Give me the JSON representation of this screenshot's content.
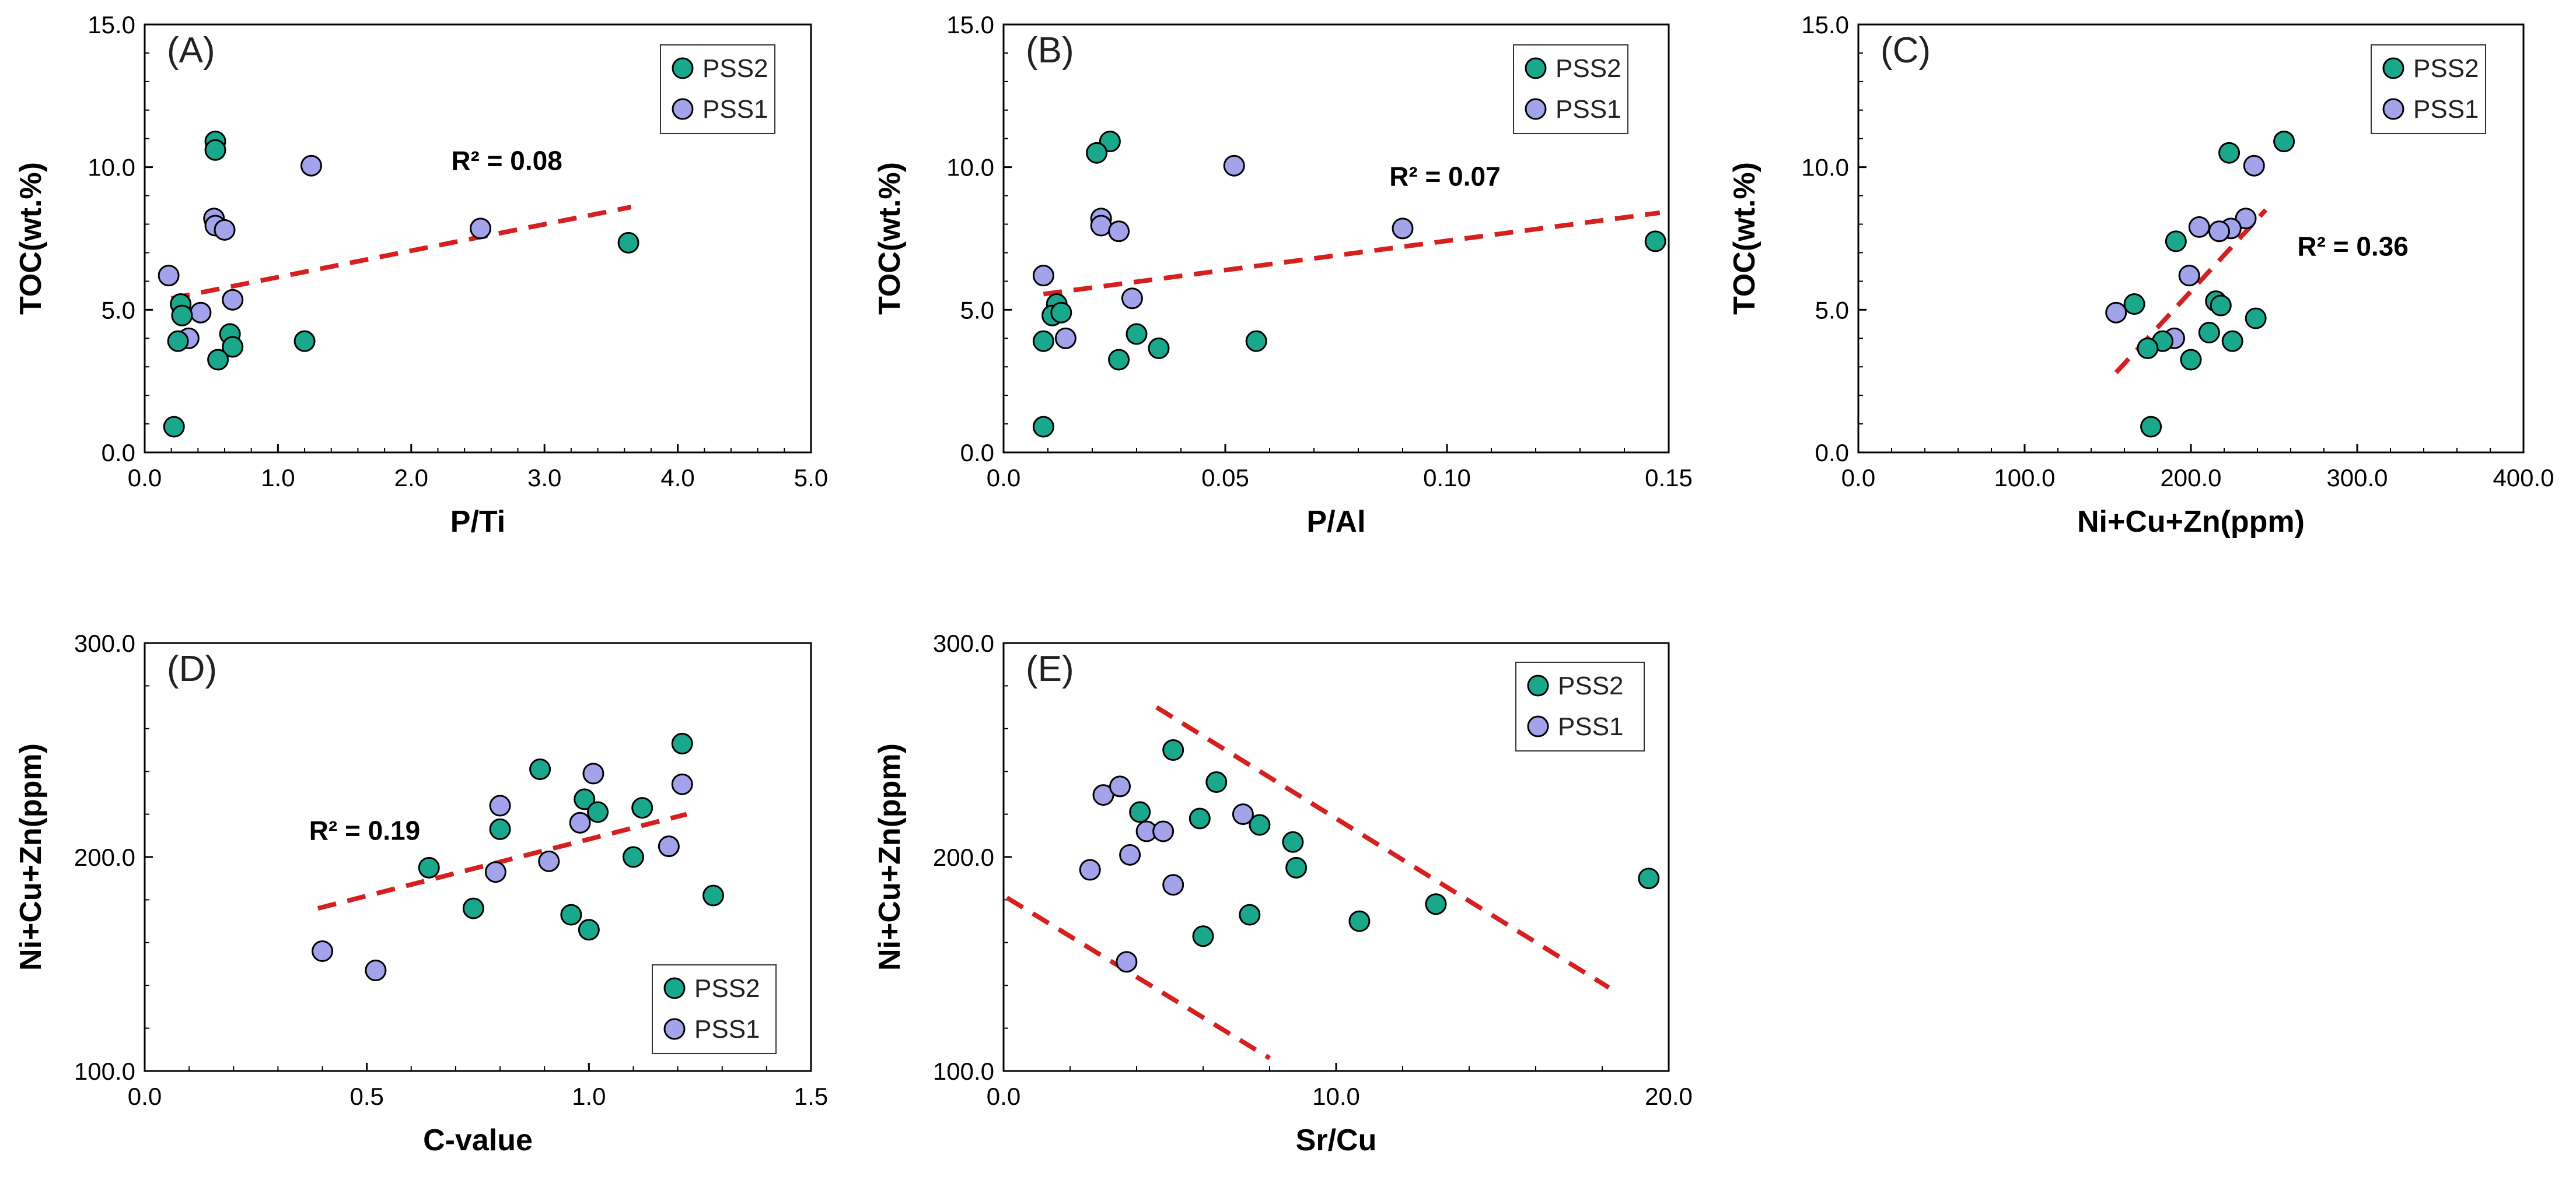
{
  "colors": {
    "pss2": "#19a88b",
    "pss1": "#a3a3ec",
    "trend": "#d61f1f",
    "axis": "#000000"
  },
  "chart_data": [
    {
      "type": "scatter",
      "panel": "(A)",
      "xlabel": "P/Ti",
      "ylabel": "TOC(wt.%)",
      "xlim": [
        0,
        5
      ],
      "ylim": [
        0,
        15
      ],
      "xticks": [
        "0.0",
        "1.0",
        "2.0",
        "3.0",
        "4.0",
        "5.0"
      ],
      "yticks": [
        "0.0",
        "5.0",
        "10.0",
        "15.0"
      ],
      "legend": {
        "position": "top-right",
        "entries": [
          "PSS2",
          "PSS1"
        ]
      },
      "annotation": {
        "text": "R² = 0.08",
        "x": 2.3,
        "y": 9.9
      },
      "trendlines": [
        {
          "x": [
            0.2,
            3.65
          ],
          "y": [
            5.4,
            8.6
          ]
        }
      ],
      "series": [
        {
          "name": "PSS2",
          "x": [
            0.53,
            0.53,
            0.27,
            0.28,
            0.25,
            0.64,
            0.66,
            0.55,
            1.2,
            3.63,
            0.22
          ],
          "y": [
            10.9,
            10.6,
            5.2,
            4.8,
            3.9,
            4.15,
            3.7,
            3.25,
            3.9,
            7.35,
            0.9
          ]
        },
        {
          "name": "PSS1",
          "x": [
            1.25,
            2.52,
            0.52,
            0.53,
            0.6,
            0.18,
            0.66,
            0.42,
            0.33
          ],
          "y": [
            10.05,
            7.85,
            8.2,
            7.95,
            7.8,
            6.2,
            5.35,
            4.9,
            4.0
          ]
        }
      ]
    },
    {
      "type": "scatter",
      "panel": "(B)",
      "xlabel": "P/Al",
      "ylabel": "TOC(wt.%)",
      "xlim": [
        0,
        0.15
      ],
      "ylim": [
        0,
        15
      ],
      "xticks": [
        "0.0",
        "0.05",
        "0.10",
        "0.15"
      ],
      "yticks": [
        "0.0",
        "5.0",
        "10.0",
        "15.0"
      ],
      "legend": {
        "position": "top-right",
        "entries": [
          "PSS2",
          "PSS1"
        ]
      },
      "annotation": {
        "text": "R² = 0.07",
        "x": 0.087,
        "y": 9.35
      },
      "trendlines": [
        {
          "x": [
            0.009,
            0.148
          ],
          "y": [
            5.55,
            8.4
          ]
        }
      ],
      "series": [
        {
          "name": "PSS2",
          "x": [
            0.024,
            0.021,
            0.012,
            0.011,
            0.013,
            0.009,
            0.03,
            0.026,
            0.035,
            0.057,
            0.147,
            0.009
          ],
          "y": [
            10.9,
            10.5,
            5.2,
            4.8,
            4.9,
            3.9,
            4.15,
            3.25,
            3.65,
            3.9,
            7.4,
            0.9
          ]
        },
        {
          "name": "PSS1",
          "x": [
            0.052,
            0.09,
            0.022,
            0.022,
            0.026,
            0.009,
            0.029,
            0.014
          ],
          "y": [
            10.05,
            7.85,
            8.2,
            7.95,
            7.75,
            6.2,
            5.4,
            4.0
          ]
        }
      ]
    },
    {
      "type": "scatter",
      "panel": "(C)",
      "xlabel": "Ni+Cu+Zn(ppm)",
      "ylabel": "TOC(wt.%)",
      "xlim": [
        0,
        400
      ],
      "ylim": [
        0,
        15
      ],
      "xticks": [
        "0.0",
        "100.0",
        "200.0",
        "300.0",
        "400.0"
      ],
      "yticks": [
        "0.0",
        "5.0",
        "10.0",
        "15.0"
      ],
      "legend": {
        "position": "top-right",
        "entries": [
          "PSS2",
          "PSS1"
        ]
      },
      "annotation": {
        "text": "R² = 0.36",
        "x": 264,
        "y": 6.9
      },
      "trendlines": [
        {
          "x": [
            155,
            245
          ],
          "y": [
            2.8,
            8.5
          ]
        }
      ],
      "series": [
        {
          "name": "PSS2",
          "x": [
            256,
            223,
            191,
            166,
            215,
            218,
            239,
            211,
            225,
            200,
            183,
            174,
            176
          ],
          "y": [
            10.9,
            10.5,
            7.4,
            5.2,
            5.3,
            5.15,
            4.7,
            4.2,
            3.9,
            3.25,
            3.9,
            3.65,
            0.9
          ]
        },
        {
          "name": "PSS1",
          "x": [
            238,
            233,
            224,
            217,
            205,
            199,
            155,
            190
          ],
          "y": [
            10.05,
            8.2,
            7.85,
            7.75,
            7.9,
            6.2,
            4.9,
            4.0
          ]
        }
      ]
    },
    {
      "type": "scatter",
      "panel": "(D)",
      "xlabel": "C-value",
      "ylabel": "Ni+Cu+Zn(ppm)",
      "xlim": [
        0,
        1.5
      ],
      "ylim": [
        100,
        300
      ],
      "xticks": [
        "0.0",
        "0.5",
        "1.0",
        "1.5"
      ],
      "yticks": [
        "100.0",
        "200.0",
        "300.0"
      ],
      "legend": {
        "position": "bottom-right",
        "entries": [
          "PSS2",
          "PSS1"
        ]
      },
      "annotation": {
        "text": "R² = 0.19",
        "x": 0.37,
        "y": 208
      },
      "trendlines": [
        {
          "x": [
            0.39,
            1.22
          ],
          "y": [
            176,
            220
          ]
        }
      ],
      "series": [
        {
          "name": "PSS2",
          "x": [
            1.21,
            0.89,
            0.99,
            1.02,
            1.12,
            0.8,
            1.1,
            0.64,
            0.74,
            0.96,
            1.0,
            1.28
          ],
          "y": [
            253,
            241,
            227,
            221,
            223,
            213,
            200,
            195,
            176,
            173,
            166,
            182
          ]
        },
        {
          "name": "PSS1",
          "x": [
            1.21,
            1.01,
            0.8,
            0.98,
            0.91,
            0.79,
            1.18,
            0.4,
            0.52
          ],
          "y": [
            234,
            239,
            224,
            216,
            198,
            193,
            205,
            156,
            147
          ]
        }
      ]
    },
    {
      "type": "scatter",
      "panel": "(E)",
      "xlabel": "Sr/Cu",
      "ylabel": "Ni+Cu+Zn(ppm)",
      "xlim": [
        0,
        20
      ],
      "ylim": [
        100,
        300
      ],
      "xticks": [
        "0.0",
        "10.0",
        "20.0"
      ],
      "yticks": [
        "100.0",
        "200.0",
        "300.0"
      ],
      "legend": {
        "position": "top-right",
        "entries": [
          "PSS2",
          "PSS1"
        ]
      },
      "annotation": null,
      "trendlines": [
        {
          "x": [
            4.6,
            18.2
          ],
          "y": [
            270,
            139
          ]
        },
        {
          "x": [
            0.1,
            8.0
          ],
          "y": [
            181,
            106
          ]
        }
      ],
      "series": [
        {
          "name": "PSS2",
          "x": [
            5.1,
            6.4,
            4.1,
            5.9,
            7.7,
            8.7,
            8.8,
            7.4,
            6.0,
            10.7,
            13.0,
            19.4
          ],
          "y": [
            250,
            235,
            221,
            218,
            215,
            207,
            195,
            173,
            163,
            170,
            178,
            190
          ]
        },
        {
          "name": "PSS1",
          "x": [
            3.0,
            3.5,
            7.2,
            4.3,
            4.8,
            3.8,
            2.6,
            5.1,
            3.7
          ],
          "y": [
            229,
            233,
            220,
            212,
            212,
            201,
            194,
            187,
            151
          ]
        }
      ]
    }
  ]
}
